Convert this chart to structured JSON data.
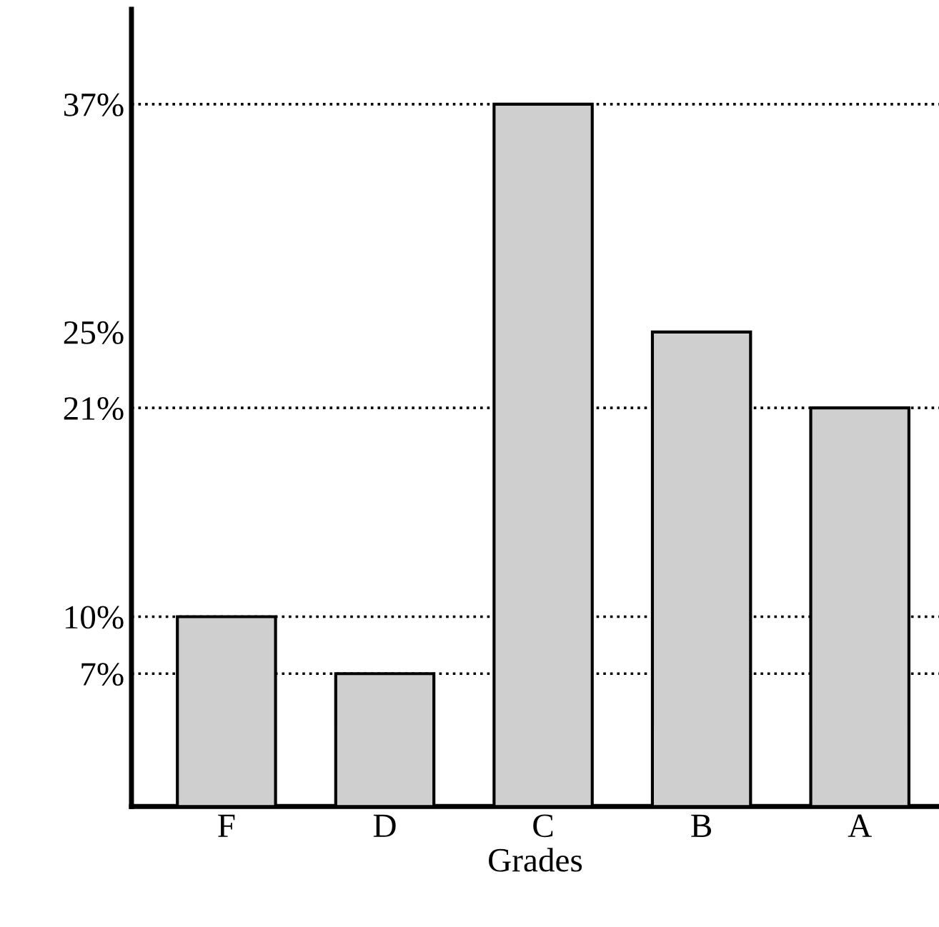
{
  "chart_data": {
    "type": "bar",
    "xlabel": "Grades",
    "categories": [
      "F",
      "D",
      "C",
      "B",
      "A"
    ],
    "values": [
      10,
      7,
      37,
      25,
      21
    ],
    "color": "#cfcfcf",
    "ylim": [
      0,
      42
    ],
    "yticks": [
      {
        "value": 7,
        "label": "7%"
      },
      {
        "value": 10,
        "label": "10%"
      },
      {
        "value": 21,
        "label": "21%"
      },
      {
        "value": 25,
        "label": "25%"
      },
      {
        "value": 37,
        "label": "37%"
      }
    ],
    "ref_lines": [
      {
        "axis": "y",
        "value": 7,
        "line_style": "dotted"
      },
      {
        "axis": "y",
        "value": 10,
        "line_style": "dotted"
      },
      {
        "axis": "y",
        "value": 21,
        "line_style": "dotted"
      },
      {
        "axis": "y",
        "value": 37,
        "line_style": "dotted"
      }
    ],
    "grid": false
  }
}
